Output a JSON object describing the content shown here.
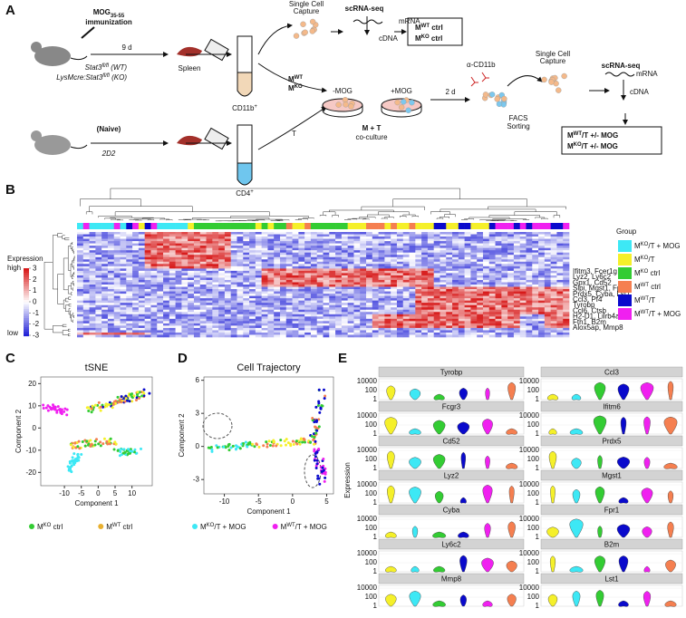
{
  "panel_labels": [
    "A",
    "B",
    "C",
    "D",
    "E"
  ],
  "panel_a": {
    "immunization": [
      {
        "main": "MOG",
        "sub": "35-55"
      },
      "immunization"
    ],
    "wt_strain": {
      "main": "Stat3",
      "sup": "fl/fl",
      "after": " (WT)"
    },
    "ko_strain": {
      "main": "LysMcre:Stat3",
      "sup": "fl/fl",
      "after": " (KO)"
    },
    "duration_1": "9 d",
    "spleen": "Spleen",
    "cd11b": {
      "main": "CD11b",
      "sup": "+"
    },
    "capture_1": [
      "Single Cell",
      "Capture"
    ],
    "scrnaseq_1": "scRNA-seq",
    "mrna_1": "mRNA",
    "cdna_1": "cDNA",
    "out_wt": {
      "main": "M",
      "sup": "WT",
      "after": " ctrl"
    },
    "out_ko": {
      "main": "M",
      "sup": "KO",
      "after": " ctrl"
    },
    "m_wt": {
      "main": "M",
      "sup": "WT"
    },
    "m_ko": {
      "main": "M",
      "sup": "KO"
    },
    "minus_mog": "-MOG",
    "plus_mog": "+MOG",
    "coculture": [
      "M + T",
      "co-culture"
    ],
    "duration_2": "2 d",
    "antibody": "α-CD11b",
    "facs": [
      "FACS",
      "Sorting"
    ],
    "capture_2": [
      "Single Cell",
      "Capture"
    ],
    "scrnaseq_2": "scRNA-seq",
    "mrna_2": "mRNA",
    "cdna_2": "cDNA",
    "out_wt_t": {
      "main": "M",
      "sup": "WT",
      "after": "/T +/- MOG"
    },
    "out_ko_t": {
      "main": "M",
      "sup": "KO",
      "after": "/T +/- MOG"
    },
    "naive": "(Naive)",
    "tcr": "2D2",
    "t_cell": "T",
    "cd4": {
      "main": "CD4",
      "sup": "+"
    }
  },
  "panel_b": {
    "scale_title": "Expression",
    "scale_high": "high",
    "scale_low": "low",
    "scale_ticks": [
      3,
      2,
      1,
      0,
      -1,
      -2,
      -3
    ],
    "genes": [
      "Ifitm3, Fcer1g",
      "Lyz2, Ly6c2",
      "Gpx1, Cd52",
      "Slpi, Mgst1, Fpr1",
      "Prdx5, Cyba, Lst1",
      "Ccl3, Pf4",
      "Tyrobp",
      "Ccl6, Ctsb",
      "H2-D1, Lilrb4a",
      "Fth1, B2m",
      "Alox5ap, Mmp8"
    ],
    "legend_title": "Group",
    "groups": [
      {
        "label": {
          "main": "M",
          "sup": "KO",
          "after": "/T + MOG"
        },
        "color": "#3de8f5"
      },
      {
        "label": {
          "main": "M",
          "sup": "KO",
          "after": "/T"
        },
        "color": "#f5f02a"
      },
      {
        "label": {
          "main": "M",
          "sup": "KO",
          "after": " ctrl"
        },
        "color": "#33cc33"
      },
      {
        "label": {
          "main": "M",
          "sup": "WT",
          "after": " ctrl"
        },
        "color": "#f57f50"
      },
      {
        "label": {
          "main": "M",
          "sup": "WT",
          "after": "/T"
        },
        "color": "#0a0acc"
      },
      {
        "label": {
          "main": "M",
          "sup": "WT",
          "after": "/T + MOG"
        },
        "color": "#f020f0"
      }
    ]
  },
  "panel_c": {
    "title": "tSNE",
    "xlabel": "Component 1",
    "ylabel": "Component 2",
    "xlim": [
      -17,
      16
    ],
    "ylim": [
      -26,
      23
    ],
    "xticks": [
      -10,
      -5,
      0,
      5,
      10
    ],
    "yticks": [
      20,
      10,
      0,
      -10,
      -20
    ],
    "legend": [
      {
        "label": {
          "main": "M",
          "sup": "KO",
          "after": " ctrl"
        },
        "color": "#33cc33"
      },
      {
        "label": {
          "main": "M",
          "sup": "WT",
          "after": " ctrl"
        },
        "color": "#e8b030"
      }
    ]
  },
  "panel_d": {
    "title": "Cell Trajectory",
    "xlabel": "Component 1",
    "ylabel": "Component 2",
    "xlim": [
      -13,
      6
    ],
    "ylim": [
      -4.3,
      6.3
    ],
    "xticks": [
      -10,
      -5,
      0,
      5
    ],
    "yticks": [
      6,
      3,
      0,
      -3
    ],
    "legend": [
      {
        "label": {
          "main": "M",
          "sup": "KO",
          "after": "/T + MOG"
        },
        "color": "#3de8f5"
      },
      {
        "label": {
          "main": "M",
          "sup": "WT",
          "after": "/T + MOG"
        },
        "color": "#f020f0"
      }
    ]
  },
  "panel_e": {
    "ylabel": "Expression",
    "yticks": [
      10000,
      100,
      1
    ],
    "log": true,
    "genes_left": [
      "Tyrobp",
      "Fcgr3",
      "Cd52",
      "Lyz2",
      "Cyba",
      "Ly6c2",
      "Mmp8"
    ],
    "genes_right": [
      "Ccl3",
      "Ifitm6",
      "Prdx5",
      "Mgst1",
      "Fpr1",
      "B2m",
      "Lst1"
    ],
    "colors": [
      "#f5f02a",
      "#3de8f5",
      "#33cc33",
      "#0a0acc",
      "#f020f0",
      "#f57f50"
    ]
  }
}
